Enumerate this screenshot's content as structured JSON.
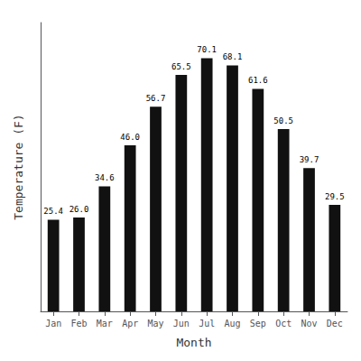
{
  "chart_data": {
    "type": "bar",
    "categories": [
      "Jan",
      "Feb",
      "Mar",
      "Apr",
      "May",
      "Jun",
      "Jul",
      "Aug",
      "Sep",
      "Oct",
      "Nov",
      "Dec"
    ],
    "values": [
      25.4,
      26.0,
      34.6,
      46.0,
      56.7,
      65.5,
      70.1,
      68.1,
      61.6,
      50.5,
      39.7,
      29.5
    ],
    "value_labels": [
      "25.4",
      "26.0",
      "34.6",
      "46.0",
      "56.7",
      "65.5",
      "70.1",
      "68.1",
      "61.6",
      "50.5",
      "39.7",
      "29.5"
    ],
    "color": "#111111",
    "xlabel": "Month",
    "ylabel": "Temperature (F)",
    "ylim": [
      0,
      80
    ],
    "grid": false,
    "data_labels": true,
    "tick_labels": "x"
  }
}
